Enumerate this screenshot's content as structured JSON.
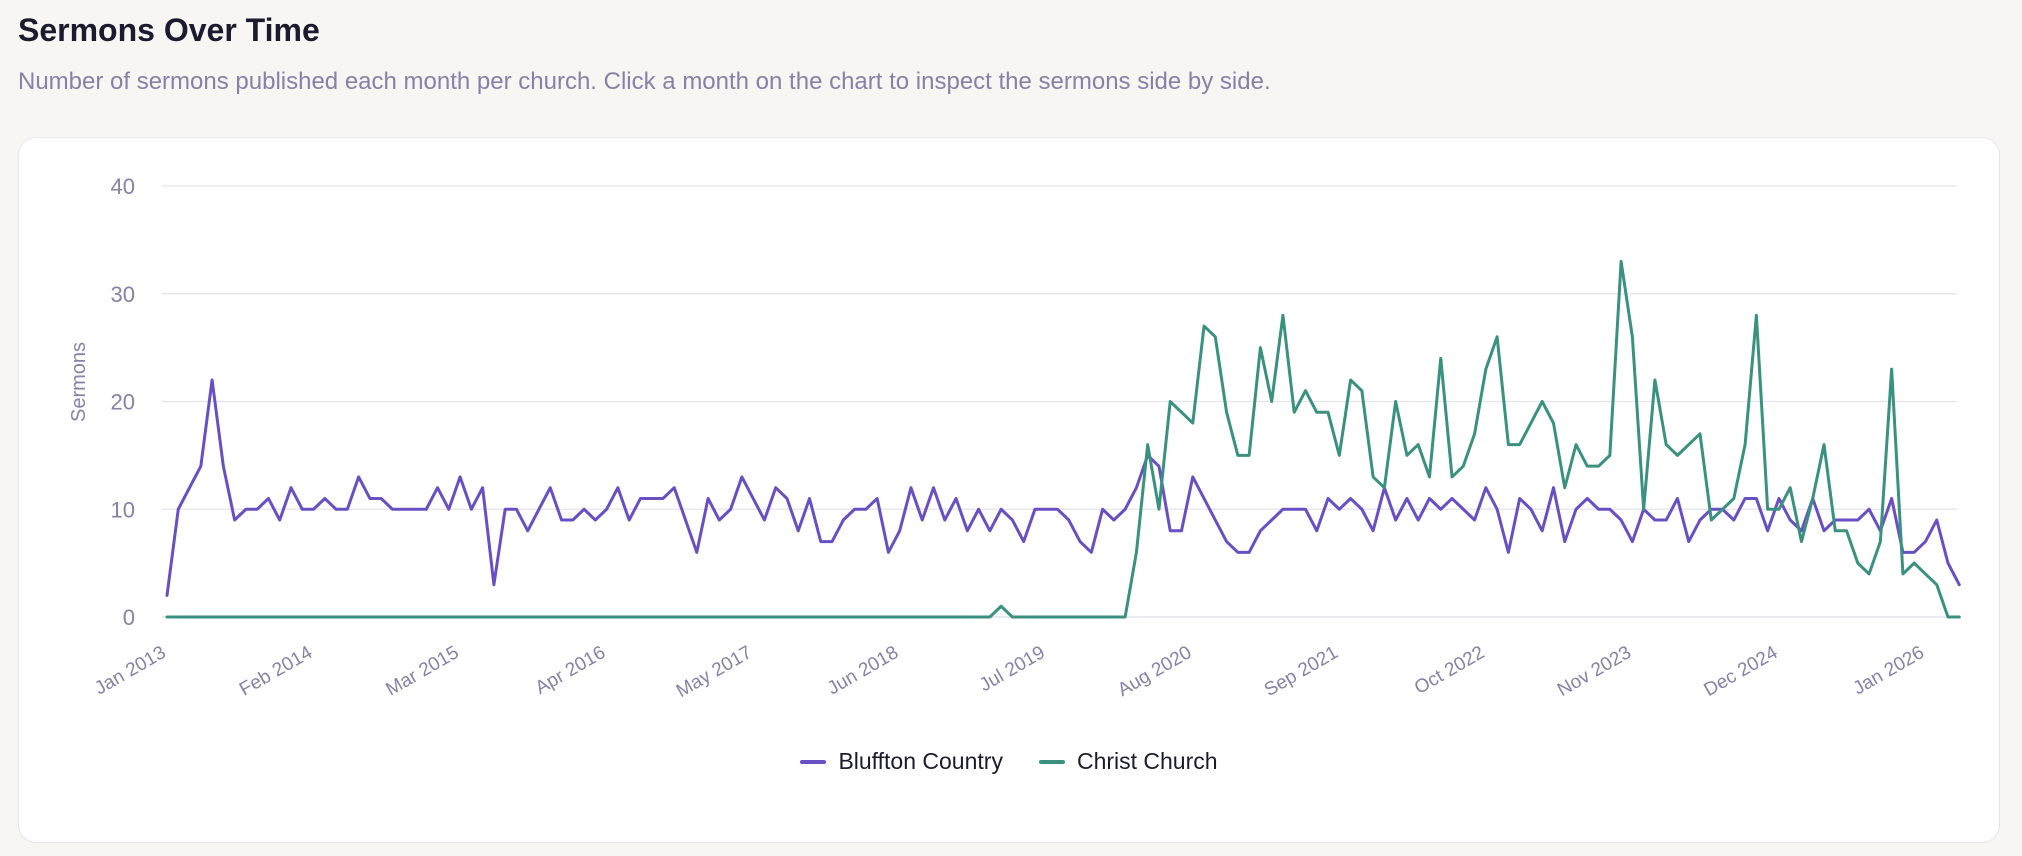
{
  "header": {
    "title": "Sermons Over Time",
    "subtitle": "Number of sermons published each month per church. Click a month on the chart to inspect the sermons side by side."
  },
  "colors": {
    "bluffton": "#6a4fc4",
    "christ": "#3a9180",
    "grid": "#e4e3ee",
    "text_muted": "#8880a8"
  },
  "chart_data": {
    "type": "line",
    "title": "",
    "xlabel": "",
    "ylabel": "Sermons",
    "ylim": [
      0,
      40
    ],
    "yticks": [
      0,
      10,
      20,
      30,
      40
    ],
    "x_start": "Jan 2013",
    "x_end": "Mar 2026",
    "xticks": [
      "Jan 2013",
      "Feb 2014",
      "Mar 2015",
      "Apr 2016",
      "May 2017",
      "Jun 2018",
      "Jul 2019",
      "Aug 2020",
      "Sep 2021",
      "Oct 2022",
      "Nov 2023",
      "Dec 2024",
      "Jan 2026"
    ],
    "grid": true,
    "legend_position": "bottom-center",
    "series": [
      {
        "name": "Bluffton Country",
        "color": "#6a4fc4",
        "values": [
          2,
          10,
          12,
          14,
          22,
          14,
          9,
          10,
          10,
          11,
          9,
          12,
          10,
          10,
          11,
          10,
          10,
          13,
          11,
          11,
          10,
          10,
          10,
          10,
          12,
          10,
          13,
          10,
          12,
          3,
          10,
          10,
          8,
          10,
          12,
          9,
          9,
          10,
          9,
          10,
          12,
          9,
          11,
          11,
          11,
          12,
          9,
          6,
          11,
          9,
          10,
          13,
          11,
          9,
          12,
          11,
          8,
          11,
          7,
          7,
          9,
          10,
          10,
          11,
          6,
          8,
          12,
          9,
          12,
          9,
          11,
          8,
          10,
          8,
          10,
          9,
          7,
          10,
          10,
          10,
          9,
          7,
          6,
          10,
          9,
          10,
          12,
          15,
          14,
          8,
          8,
          13,
          11,
          9,
          7,
          6,
          6,
          8,
          9,
          10,
          10,
          10,
          8,
          11,
          10,
          11,
          10,
          8,
          12,
          9,
          11,
          9,
          11,
          10,
          11,
          10,
          9,
          12,
          10,
          6,
          11,
          10,
          8,
          12,
          7,
          10,
          11,
          10,
          10,
          9,
          7,
          10,
          9,
          9,
          11,
          7,
          9,
          10,
          10,
          9,
          11,
          11,
          8,
          11,
          9,
          8,
          11,
          8,
          9,
          9,
          9,
          10,
          8,
          11,
          6,
          6,
          7,
          9,
          5,
          3
        ]
      },
      {
        "name": "Christ Church",
        "color": "#3a9180",
        "values": [
          0,
          0,
          0,
          0,
          0,
          0,
          0,
          0,
          0,
          0,
          0,
          0,
          0,
          0,
          0,
          0,
          0,
          0,
          0,
          0,
          0,
          0,
          0,
          0,
          0,
          0,
          0,
          0,
          0,
          0,
          0,
          0,
          0,
          0,
          0,
          0,
          0,
          0,
          0,
          0,
          0,
          0,
          0,
          0,
          0,
          0,
          0,
          0,
          0,
          0,
          0,
          0,
          0,
          0,
          0,
          0,
          0,
          0,
          0,
          0,
          0,
          0,
          0,
          0,
          0,
          0,
          0,
          0,
          0,
          0,
          0,
          0,
          0,
          0,
          1,
          0,
          0,
          0,
          0,
          0,
          0,
          0,
          0,
          0,
          0,
          0,
          6,
          16,
          10,
          20,
          19,
          18,
          27,
          26,
          19,
          15,
          15,
          25,
          20,
          28,
          19,
          21,
          19,
          19,
          15,
          22,
          21,
          13,
          12,
          20,
          15,
          16,
          13,
          24,
          13,
          14,
          17,
          23,
          26,
          16,
          16,
          18,
          20,
          18,
          12,
          16,
          14,
          14,
          15,
          33,
          26,
          10,
          22,
          16,
          15,
          16,
          17,
          9,
          10,
          11,
          16,
          28,
          10,
          10,
          12,
          7,
          11,
          16,
          8,
          8,
          5,
          4,
          7,
          23,
          4,
          5,
          4,
          3,
          0,
          0
        ]
      }
    ]
  }
}
